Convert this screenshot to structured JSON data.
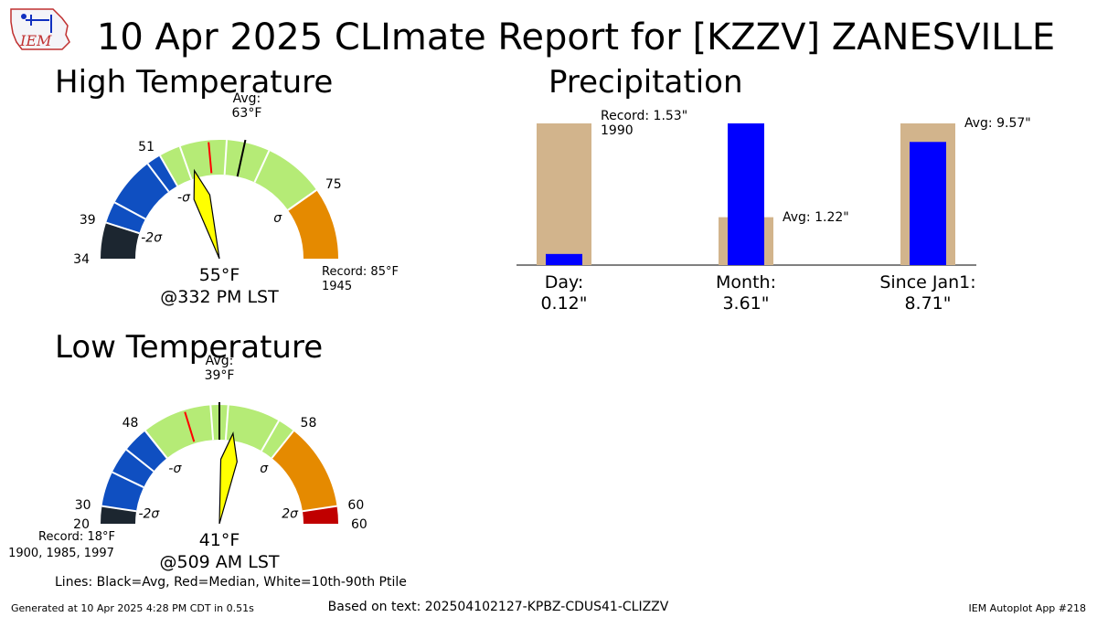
{
  "page": {
    "title": "10 Apr 2025 CLImate Report for [KZZV] ZANESVILLE",
    "logo_text": "IEM",
    "footer_left": "Generated at 10 Apr 2025 4:28 PM CDT in 0.51s",
    "footer_center": "Based on text: 202504102127-KPBZ-CDUS41-CLIZZV",
    "footer_right": "IEM Autoplot App #218",
    "legend_note": "Lines: Black=Avg, Red=Median, White=10th-90th Ptile"
  },
  "chart_data": [
    {
      "type": "gauge",
      "title": "High Temperature",
      "unit": "°F",
      "range": [
        34,
        85
      ],
      "value": 55,
      "value_label": "55",
      "time_label": "@332 PM LST",
      "avg": 63,
      "avg_label": [
        "Avg:",
        "63"
      ],
      "median": 58,
      "percentile_lines": [
        42,
        49,
        54,
        60.5,
        66.5,
        75
      ],
      "bands": [
        {
          "from": 34,
          "to": 39,
          "color": "#1c2630",
          "label": "34"
        },
        {
          "from": 39,
          "to": 51,
          "color": "#0f4fc1",
          "label": "39"
        },
        {
          "from": 51,
          "to": 75,
          "color": "#b5eb76",
          "label": "51"
        },
        {
          "from": 75,
          "to": 85,
          "color": "#e58a00",
          "label": "75"
        }
      ],
      "sigma_labels": [
        {
          "text": "-2σ",
          "at": 39
        },
        {
          "text": "-σ",
          "at": 51
        },
        {
          "text": "σ",
          "at": 75
        }
      ],
      "record_label": [
        "Record: 85",
        "1945"
      ]
    },
    {
      "type": "gauge",
      "title": "Low Temperature",
      "unit": "°F",
      "range": [
        18,
        60
      ],
      "value": 41,
      "value_label": "41",
      "time_label": "@509 AM LST",
      "avg": 39,
      "avg_label": [
        "Avg:",
        "39"
      ],
      "median": 35,
      "percentile_lines": [
        24,
        27,
        30,
        38,
        40,
        46
      ],
      "bands": [
        {
          "from": 18,
          "to": 20,
          "color": "#1c2630",
          "label": "20"
        },
        {
          "from": 20,
          "to": 30,
          "color": "#0f4fc1",
          "label": "30"
        },
        {
          "from": 30,
          "to": 48,
          "color": "#b5eb76",
          "label": "48"
        },
        {
          "from": 48,
          "to": 58,
          "color": "#e58a00",
          "label": "58"
        },
        {
          "from": 58,
          "to": 60,
          "color": "#c00000",
          "label": "60"
        }
      ],
      "sigma_labels": [
        {
          "text": "-2σ",
          "at": 20
        },
        {
          "text": "-σ",
          "at": 30
        },
        {
          "text": "σ",
          "at": 48
        },
        {
          "text": "2σ",
          "at": 58
        }
      ],
      "record_label": [
        "Record: 18",
        "1900, 1985, 1997"
      ]
    },
    {
      "type": "bar",
      "title": "Precipitation",
      "categories": [
        "Day:",
        "Month:",
        "Since Jan1:"
      ],
      "observed_labels": [
        "0.12\"",
        "3.61\"",
        "8.71\""
      ],
      "series": [
        {
          "name": "reference",
          "color": "#d2b48c",
          "values": [
            1.53,
            1.22,
            9.57
          ]
        },
        {
          "name": "observed",
          "color": "#0000ff",
          "values": [
            0.12,
            3.61,
            8.71
          ]
        }
      ],
      "annotations": [
        "Record: 1.53\"\n1990",
        "Avg: 1.22\"",
        "Avg: 9.57\""
      ]
    }
  ]
}
